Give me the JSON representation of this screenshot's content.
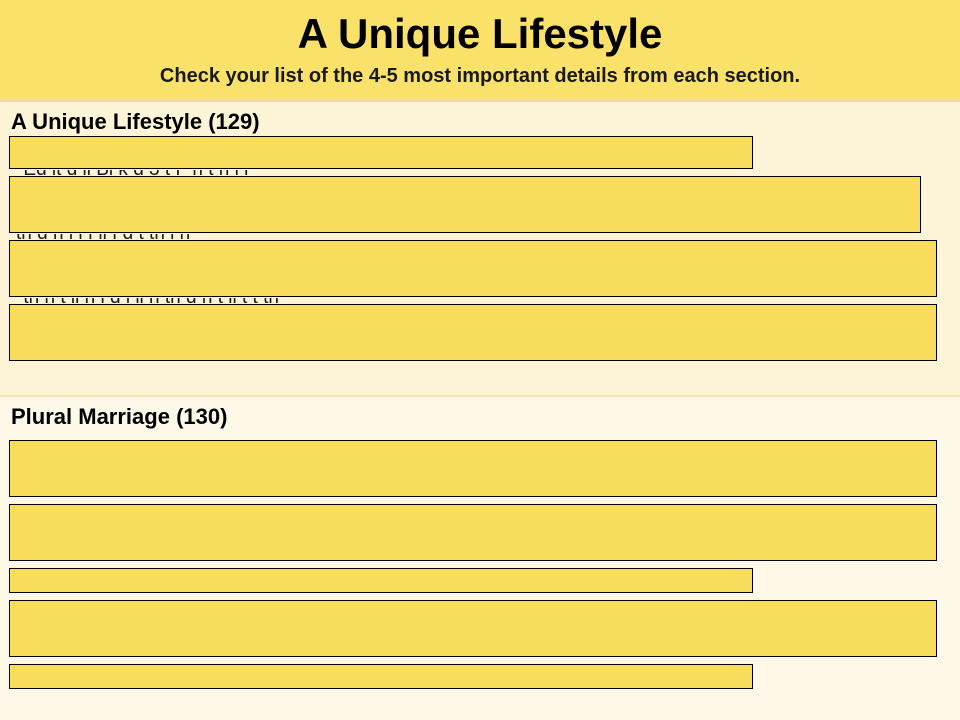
{
  "header": {
    "title": "A Unique Lifestyle",
    "subtitle": "Check your  list of the 4-5 most important details from each section."
  },
  "sections": [
    {
      "title": "A Unique Lifestyle (129)"
    },
    {
      "title": "Plural Marriage (130)"
    }
  ],
  "hidden_text_peeks": [
    "*Ed lt  d  ll   Bl k  d 3 t    F    h t     h     l    l  ",
    "th      d  h     l   l  f   ll  f  d  t th  l h ",
    "*th   h  t   ll h   l  d  l  ll h    th  d  h   t ll  t  t th"
  ],
  "colors": {
    "header_bg": "#fae16a",
    "section_bg": "#fdf3d6",
    "bar_fill": "#f8dd5c",
    "bar_border": "#000000"
  }
}
